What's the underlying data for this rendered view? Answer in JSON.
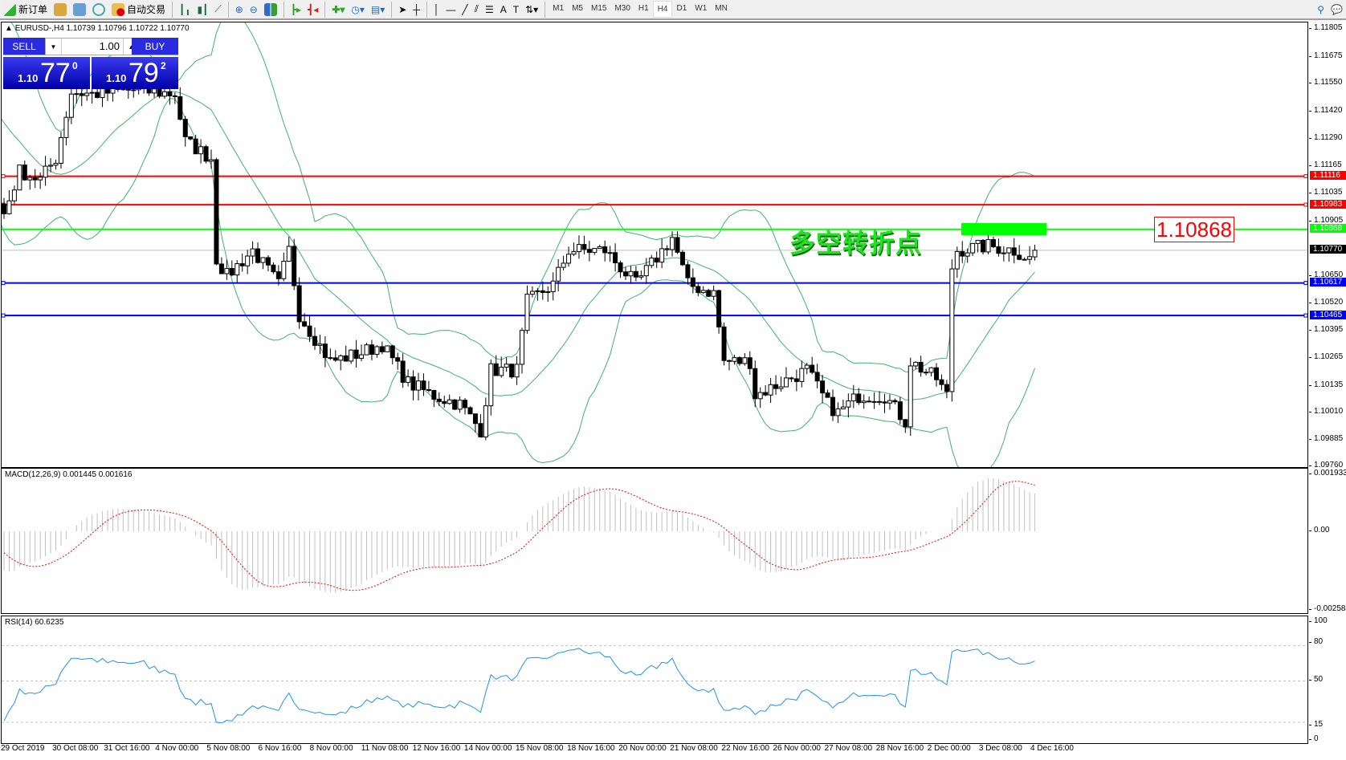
{
  "toolbar": {
    "new_order": "新订单",
    "auto_trading": "自动交易",
    "timeframes": [
      "M1",
      "M5",
      "M15",
      "M30",
      "H1",
      "H4",
      "D1",
      "W1",
      "MN"
    ],
    "active_timeframe": "H4"
  },
  "chart": {
    "header": "EURUSD-,H4  1.10739 1.10796 1.10722 1.10770",
    "symbol": "EURUSD-",
    "timeframe": "H4",
    "open": 1.10739,
    "high": 1.10796,
    "low": 1.10722,
    "close": 1.1077
  },
  "trade": {
    "sell": "SELL",
    "buy": "BUY",
    "lots": "1.00",
    "sell_prefix": "1.10",
    "sell_big": "77",
    "sell_sup": "0",
    "buy_prefix": "1.10",
    "buy_big": "79",
    "buy_sup": "2"
  },
  "price_axis": [
    "1.11805",
    "1.11675",
    "1.11550",
    "1.11420",
    "1.11290",
    "1.11165",
    "1.11035",
    "1.10905",
    "1.10650",
    "1.10520",
    "1.10395",
    "1.10265",
    "1.10135",
    "1.10010",
    "1.09885",
    "1.09760"
  ],
  "levels": [
    {
      "price": "1.11116",
      "color": "#ff0000"
    },
    {
      "price": "1.10983",
      "color": "#ff0000"
    },
    {
      "price": "1.10868",
      "color": "#00ff00"
    },
    {
      "price": "1.10770",
      "color": "#000000"
    },
    {
      "price": "1.10617",
      "color": "#0000ff"
    },
    {
      "price": "1.10465",
      "color": "#0000ff"
    }
  ],
  "annotation": {
    "text": "多空转折点",
    "price_label": "1.10868"
  },
  "macd": {
    "label": "MACD(12,26,9) 0.001445 0.001616",
    "axis": [
      "0.001933",
      "0.00",
      "-0.002584"
    ]
  },
  "rsi": {
    "label": "RSI(14) 60.6235",
    "axis": [
      "100",
      "80",
      "50",
      "15",
      "0"
    ]
  },
  "dates": [
    "29 Oct 2019",
    "30 Oct 08:00",
    "31 Oct 16:00",
    "4 Nov 00:00",
    "5 Nov 08:00",
    "6 Nov 16:00",
    "8 Nov 00:00",
    "11 Nov 08:00",
    "12 Nov 16:00",
    "14 Nov 00:00",
    "15 Nov 08:00",
    "18 Nov 16:00",
    "20 Nov 00:00",
    "21 Nov 08:00",
    "22 Nov 16:00",
    "26 Nov 00:00",
    "27 Nov 08:00",
    "28 Nov 16:00",
    "2 Dec 00:00",
    "3 Dec 08:00",
    "4 Dec 16:00"
  ]
}
